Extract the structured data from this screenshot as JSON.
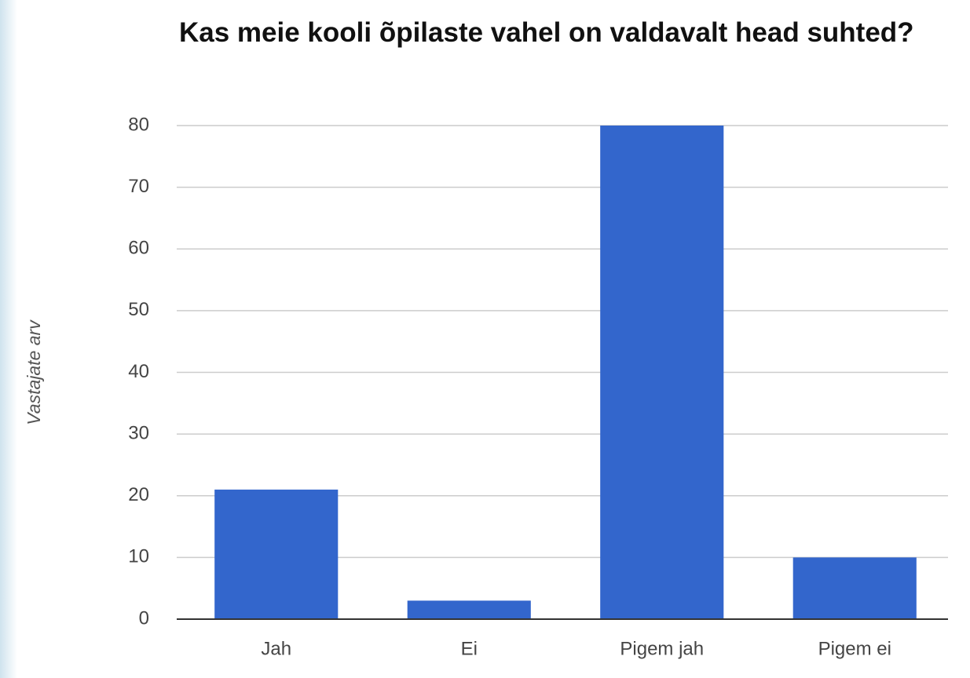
{
  "chart_data": {
    "type": "bar",
    "title": "Kas meie kooli õpilaste vahel on valdavalt head suhted?",
    "y_label": "Vastajate arv",
    "categories": [
      "Jah",
      "Ei",
      "Pigem jah",
      "Pigem ei"
    ],
    "values": [
      21,
      3,
      80,
      10
    ],
    "color": "#3366cc",
    "ylim": [
      0,
      80
    ],
    "yticks": [
      0,
      10,
      20,
      30,
      40,
      50,
      60,
      70,
      80
    ],
    "grid": true
  }
}
